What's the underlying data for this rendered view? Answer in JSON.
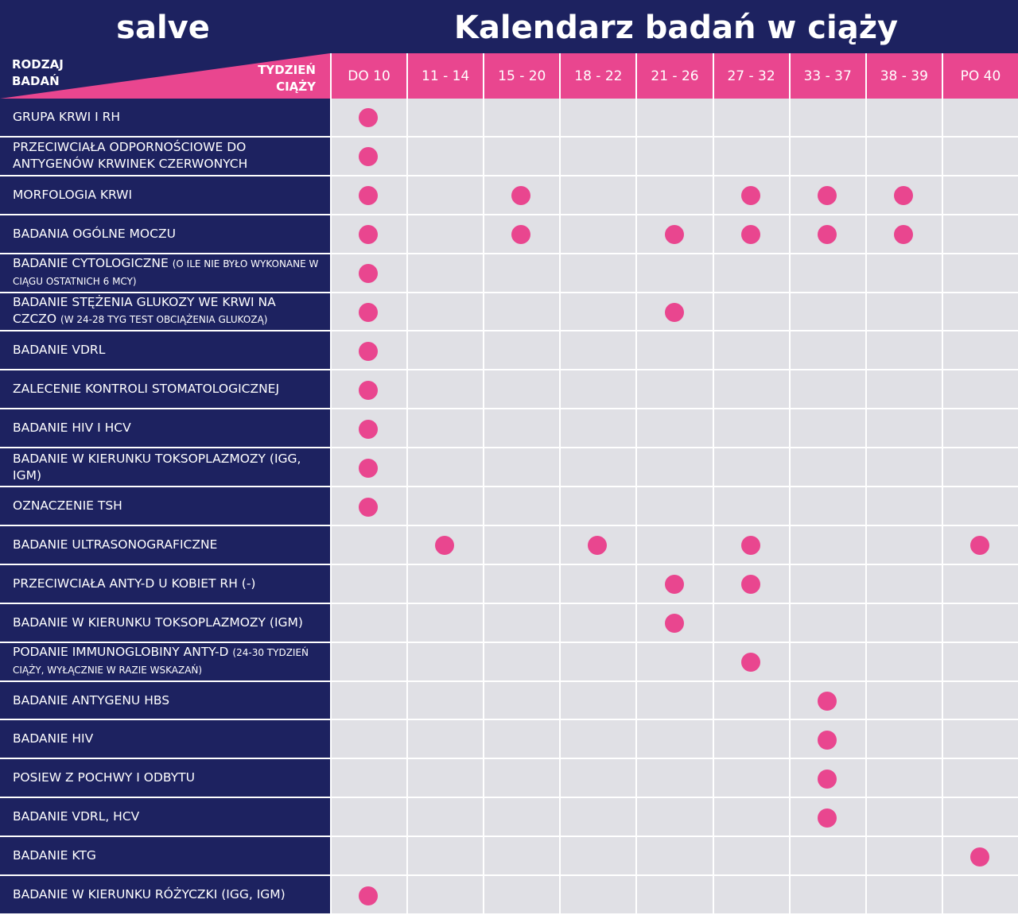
{
  "header": {
    "logo": "salve",
    "title": "Kalendarz badań w ciąży"
  },
  "table": {
    "row_header": "RODZAJ BADAŃ",
    "column_header": "TYDZIEŃ CIĄŻY",
    "columns": [
      "DO 10",
      "11 - 14",
      "15 - 20",
      "18 - 22",
      "21 - 26",
      "27 - 32",
      "33 - 37",
      "38 - 39",
      "PO 40"
    ],
    "rows": [
      {
        "label": "GRUPA KRWI I RH",
        "checks": [
          true,
          false,
          false,
          false,
          false,
          false,
          false,
          false,
          false
        ]
      },
      {
        "label": "PRZECIWCIAŁA ODPORNOŚCIOWE DO ANTYGENÓW KRWINEK CZERWONYCH",
        "checks": [
          true,
          false,
          false,
          false,
          false,
          false,
          false,
          false,
          false
        ]
      },
      {
        "label": "MORFOLOGIA KRWI",
        "checks": [
          true,
          false,
          true,
          false,
          false,
          true,
          true,
          true,
          false
        ]
      },
      {
        "label": "BADANIA OGÓLNE MOCZU",
        "checks": [
          true,
          false,
          true,
          false,
          true,
          true,
          true,
          true,
          false
        ]
      },
      {
        "label": "BADANIE CYTOLOGICZNE",
        "note": "(O ILE NIE BYŁO WYKONANE W CIĄGU OSTATNICH 6 MCY)",
        "checks": [
          true,
          false,
          false,
          false,
          false,
          false,
          false,
          false,
          false
        ]
      },
      {
        "label": "BADANIE STĘŻENIA GLUKOZY WE KRWI NA CZCZO",
        "note": "(W 24-28 TYG TEST OBCIĄŻENIA GLUKOZĄ)",
        "checks": [
          true,
          false,
          false,
          false,
          true,
          false,
          false,
          false,
          false
        ]
      },
      {
        "label": "BADANIE VDRL",
        "checks": [
          true,
          false,
          false,
          false,
          false,
          false,
          false,
          false,
          false
        ]
      },
      {
        "label": "ZALECENIE KONTROLI STOMATOLOGICZNEJ",
        "checks": [
          true,
          false,
          false,
          false,
          false,
          false,
          false,
          false,
          false
        ]
      },
      {
        "label": "BADANIE HIV I HCV",
        "checks": [
          true,
          false,
          false,
          false,
          false,
          false,
          false,
          false,
          false
        ]
      },
      {
        "label": "BADANIE W KIERUNKU TOKSOPLAZMOZY (IGG, IGM)",
        "checks": [
          true,
          false,
          false,
          false,
          false,
          false,
          false,
          false,
          false
        ]
      },
      {
        "label": "OZNACZENIE TSH",
        "checks": [
          true,
          false,
          false,
          false,
          false,
          false,
          false,
          false,
          false
        ]
      },
      {
        "label": "BADANIE ULTRASONOGRAFICZNE",
        "checks": [
          false,
          true,
          false,
          true,
          false,
          true,
          false,
          false,
          true
        ]
      },
      {
        "label": "PRZECIWCIAŁA ANTY-D U KOBIET RH (-)",
        "checks": [
          false,
          false,
          false,
          false,
          true,
          true,
          false,
          false,
          false
        ]
      },
      {
        "label": "BADANIE W KIERUNKU TOKSOPLAZMOZY (IGM)",
        "checks": [
          false,
          false,
          false,
          false,
          true,
          false,
          false,
          false,
          false
        ]
      },
      {
        "label": "PODANIE IMMUNOGLOBINY ANTY-D",
        "note": "(24-30 TYDZIEŃ CIĄŻY, WYŁĄCZNIE W RAZIE WSKAZAŃ)",
        "checks": [
          false,
          false,
          false,
          false,
          false,
          true,
          false,
          false,
          false
        ]
      },
      {
        "label": "BADANIE ANTYGENU HBS",
        "checks": [
          false,
          false,
          false,
          false,
          false,
          false,
          true,
          false,
          false
        ]
      },
      {
        "label": "BADANIE HIV",
        "checks": [
          false,
          false,
          false,
          false,
          false,
          false,
          true,
          false,
          false
        ]
      },
      {
        "label": "POSIEW Z POCHWY I ODBYTU",
        "checks": [
          false,
          false,
          false,
          false,
          false,
          false,
          true,
          false,
          false
        ]
      },
      {
        "label": "BADANIE VDRL, HCV",
        "checks": [
          false,
          false,
          false,
          false,
          false,
          false,
          true,
          false,
          false
        ]
      },
      {
        "label": "BADANIE KTG",
        "checks": [
          false,
          false,
          false,
          false,
          false,
          false,
          false,
          false,
          true
        ]
      },
      {
        "label": "BADANIE W KIERUNKU RÓŻYCZKI (IGG, IGM)",
        "checks": [
          true,
          false,
          false,
          false,
          false,
          false,
          false,
          false,
          false
        ]
      }
    ]
  }
}
